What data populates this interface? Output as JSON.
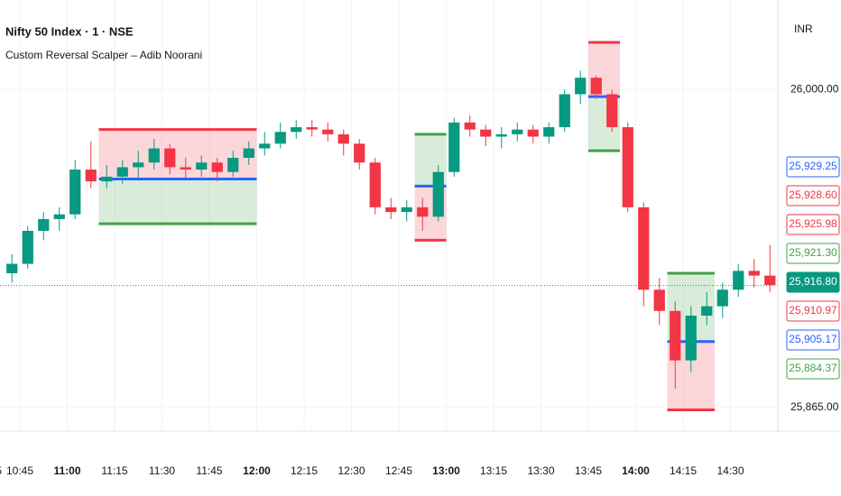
{
  "chart_data": {
    "type": "candlestick",
    "title": "Nifty 50 Index · 1 · NSE",
    "subtitle": "Custom Reversal Scalper – Adib Noorani",
    "currency": "INR",
    "categories": [
      "10:40",
      "10:45",
      "10:50",
      "10:55",
      "11:00",
      "11:05",
      "11:10",
      "11:15",
      "11:20",
      "11:25",
      "11:30",
      "11:35",
      "11:40",
      "11:45",
      "11:50",
      "11:55",
      "12:00",
      "12:05",
      "12:10",
      "12:15",
      "12:20",
      "12:25",
      "12:30",
      "12:35",
      "12:40",
      "12:45",
      "12:50",
      "12:55",
      "13:00",
      "13:05",
      "13:10",
      "13:15",
      "13:20",
      "13:25",
      "13:30",
      "13:35",
      "13:40",
      "13:45",
      "13:50",
      "13:55",
      "14:00",
      "14:05",
      "14:10",
      "14:15",
      "14:20",
      "14:25",
      "14:30",
      "14:35",
      "14:40"
    ],
    "open": [
      25922,
      25926,
      25940,
      25945,
      25947,
      25966,
      25961,
      25963,
      25967,
      25969,
      25975,
      25967,
      25966,
      25969,
      25965,
      25971,
      25975,
      25977,
      25982,
      25984,
      25983,
      25981,
      25977,
      25969,
      25950,
      25948,
      25950,
      25946,
      25965,
      25986,
      25983,
      25980,
      25981,
      25983,
      25980,
      25984,
      25998,
      26005,
      25998,
      25984,
      25950,
      25915,
      25906,
      25885,
      25904,
      25908,
      25915,
      25923,
      25921
    ],
    "high": [
      25930,
      25942,
      25948,
      25950,
      25970,
      25978,
      25968,
      25970,
      25974,
      25979,
      25977,
      25971,
      25972,
      25971,
      25974,
      25978,
      25982,
      25986,
      25987,
      25987,
      25986,
      25983,
      25979,
      25971,
      25954,
      25953,
      25954,
      25968,
      25988,
      25989,
      25985,
      25984,
      25986,
      25985,
      25986,
      26000,
      26008,
      26006,
      26000,
      25986,
      25952,
      25920,
      25910,
      25908,
      25914,
      25918,
      25926,
      25928,
      25934
    ],
    "low": [
      25918,
      25924,
      25936,
      25940,
      25945,
      25958,
      25958,
      25960,
      25962,
      25966,
      25964,
      25962,
      25963,
      25961,
      25963,
      25968,
      25972,
      25975,
      25979,
      25980,
      25978,
      25972,
      25966,
      25947,
      25945,
      25944,
      25940,
      25944,
      25963,
      25980,
      25976,
      25975,
      25978,
      25977,
      25977,
      25982,
      25994,
      25996,
      25982,
      25948,
      25908,
      25900,
      25873,
      25880,
      25900,
      25903,
      25912,
      25916,
      25914
    ],
    "close": [
      25926,
      25940,
      25945,
      25947,
      25966,
      25961,
      25963,
      25967,
      25969,
      25975,
      25967,
      25966,
      25969,
      25965,
      25971,
      25975,
      25977,
      25982,
      25984,
      25983,
      25981,
      25977,
      25969,
      25950,
      25948,
      25950,
      25946,
      25965,
      25986,
      25983,
      25980,
      25981,
      25983,
      25980,
      25984,
      25998,
      26005,
      25998,
      25984,
      25950,
      25915,
      25906,
      25885,
      25904,
      25908,
      25915,
      25923,
      25921,
      25917
    ],
    "up_color": "#089981",
    "down_color": "#f23645",
    "zones": [
      {
        "start": "11:10",
        "end": "11:55",
        "top": 25983,
        "mid": 25962,
        "bottom": 25943,
        "top_color": "#f23645",
        "bottom_color": "#43a047"
      },
      {
        "start": "12:50",
        "end": "12:55",
        "top": 25981,
        "mid": 25959,
        "bottom": 25936,
        "top_color": "#43a047",
        "bottom_color": "#f23645"
      },
      {
        "start": "13:45",
        "end": "13:50",
        "top": 26020,
        "mid": 25997,
        "bottom": 25974,
        "top_color": "#f23645",
        "bottom_color": "#43a047"
      },
      {
        "start": "14:10",
        "end": "14:20",
        "top": 25922,
        "mid": 25893,
        "bottom": 25864,
        "top_color": "#43a047",
        "bottom_color": "#f23645"
      }
    ],
    "mid_color": "#2962ff",
    "ylim": [
      25855,
      26038
    ],
    "yticks": [
      {
        "value": 26000,
        "label": "26,000.00"
      },
      {
        "value": 25865,
        "label": "25,865.00"
      }
    ],
    "xticks": [
      "10:45",
      "11:00",
      "11:15",
      "11:30",
      "11:45",
      "12:00",
      "12:15",
      "12:30",
      "12:45",
      "13:00",
      "13:15",
      "13:30",
      "13:45",
      "14:00",
      "14:15",
      "14:30",
      "14:45"
    ],
    "bold_xticks": [
      "11:00",
      "12:00",
      "13:00",
      "14:00"
    ],
    "price_labels": [
      {
        "value": 25929.25,
        "label": "25,929.25",
        "color": "#2962ff"
      },
      {
        "value": 25928.6,
        "label": "25,928.60",
        "color": "#f23645"
      },
      {
        "value": 25925.98,
        "label": "25,925.98",
        "color": "#f23645"
      },
      {
        "value": 25921.3,
        "label": "25,921.30",
        "color": "#43a047"
      },
      {
        "value": 25916.8,
        "label": "25,916.80",
        "color": "#089981",
        "current": true
      },
      {
        "value": 25910.97,
        "label": "25,910.97",
        "color": "#f23645"
      },
      {
        "value": 25905.17,
        "label": "25,905.17",
        "color": "#2962ff"
      },
      {
        "value": 25884.37,
        "label": "25,884.37",
        "color": "#43a047"
      }
    ]
  }
}
